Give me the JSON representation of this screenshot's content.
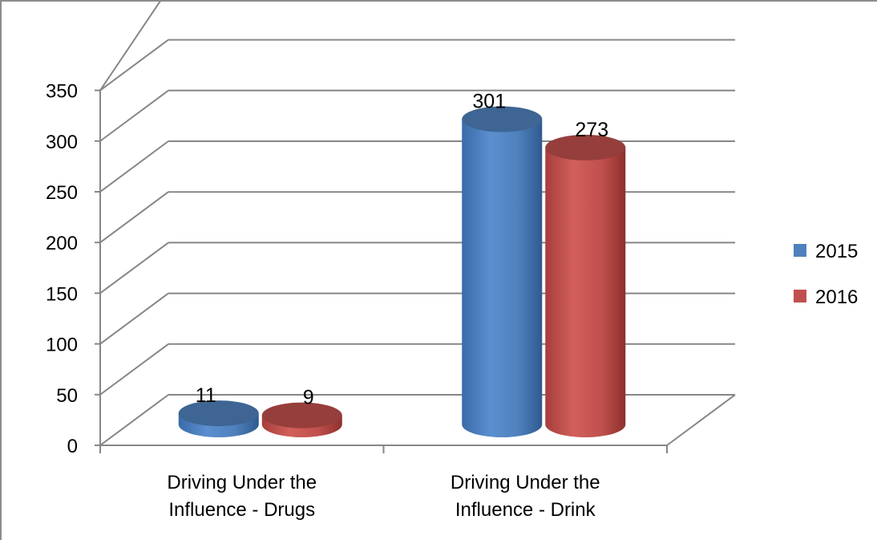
{
  "chart_data": {
    "type": "bar",
    "style": "3d-cylinder",
    "categories": [
      [
        "Driving Under the",
        "Influence - Drugs"
      ],
      [
        "Driving Under the",
        "Influence - Drink"
      ]
    ],
    "series": [
      {
        "name": "2015",
        "values": [
          11,
          301
        ],
        "color": "#4f81bd"
      },
      {
        "name": "2016",
        "values": [
          9,
          273
        ],
        "color": "#c0504d"
      }
    ],
    "y_ticks": [
      "0",
      "50",
      "100",
      "150",
      "200",
      "250",
      "300",
      "350"
    ],
    "ylim": [
      0,
      350
    ],
    "grid": true,
    "legend_position": "right"
  }
}
